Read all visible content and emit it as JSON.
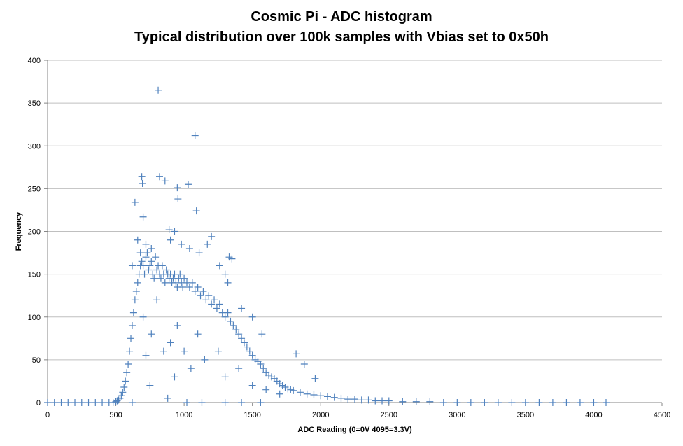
{
  "chart_data": {
    "type": "scatter",
    "title": "Cosmic Pi - ADC histogram",
    "subtitle": "Typical distribution over 100k samples with Vbias set to 0x50h",
    "xlabel": "ADC Reading (0=0V 4095=3.3V)",
    "ylabel": "Frequency",
    "xlim": [
      0,
      4500
    ],
    "ylim": [
      0,
      400
    ],
    "x_ticks": [
      0,
      500,
      1000,
      1500,
      2000,
      2500,
      3000,
      3500,
      4000,
      4500
    ],
    "y_ticks": [
      0,
      50,
      100,
      150,
      200,
      250,
      300,
      350,
      400
    ],
    "grid": "horizontal",
    "legend": "none",
    "marker": "plus",
    "color": "#4f81bd",
    "series": [
      {
        "points": [
          [
            0,
            0
          ],
          [
            50,
            0
          ],
          [
            100,
            0
          ],
          [
            150,
            0
          ],
          [
            200,
            0
          ],
          [
            250,
            0
          ],
          [
            300,
            0
          ],
          [
            350,
            0
          ],
          [
            400,
            0
          ],
          [
            450,
            0
          ],
          [
            480,
            0
          ],
          [
            500,
            1
          ],
          [
            510,
            2
          ],
          [
            520,
            3
          ],
          [
            530,
            5
          ],
          [
            540,
            8
          ],
          [
            550,
            12
          ],
          [
            560,
            18
          ],
          [
            570,
            25
          ],
          [
            580,
            35
          ],
          [
            590,
            45
          ],
          [
            600,
            60
          ],
          [
            610,
            75
          ],
          [
            620,
            90
          ],
          [
            630,
            105
          ],
          [
            640,
            120
          ],
          [
            650,
            130
          ],
          [
            660,
            140
          ],
          [
            670,
            150
          ],
          [
            680,
            160
          ],
          [
            690,
            165
          ],
          [
            700,
            160
          ],
          [
            710,
            150
          ],
          [
            720,
            170
          ],
          [
            730,
            175
          ],
          [
            740,
            155
          ],
          [
            750,
            160
          ],
          [
            760,
            165
          ],
          [
            770,
            150
          ],
          [
            780,
            145
          ],
          [
            790,
            170
          ],
          [
            800,
            155
          ],
          [
            810,
            160
          ],
          [
            820,
            150
          ],
          [
            830,
            145
          ],
          [
            840,
            160
          ],
          [
            850,
            150
          ],
          [
            860,
            140
          ],
          [
            870,
            155
          ],
          [
            880,
            150
          ],
          [
            890,
            145
          ],
          [
            900,
            150
          ],
          [
            910,
            140
          ],
          [
            920,
            145
          ],
          [
            930,
            150
          ],
          [
            940,
            140
          ],
          [
            950,
            135
          ],
          [
            960,
            145
          ],
          [
            970,
            150
          ],
          [
            980,
            140
          ],
          [
            990,
            135
          ],
          [
            1000,
            145
          ],
          [
            1020,
            140
          ],
          [
            1040,
            135
          ],
          [
            1060,
            140
          ],
          [
            1080,
            130
          ],
          [
            1100,
            135
          ],
          [
            1120,
            125
          ],
          [
            1140,
            130
          ],
          [
            1160,
            120
          ],
          [
            1180,
            125
          ],
          [
            1200,
            115
          ],
          [
            1220,
            120
          ],
          [
            1240,
            110
          ],
          [
            1260,
            115
          ],
          [
            1280,
            105
          ],
          [
            1300,
            100
          ],
          [
            1320,
            105
          ],
          [
            1340,
            95
          ],
          [
            1360,
            90
          ],
          [
            1380,
            85
          ],
          [
            1400,
            80
          ],
          [
            1420,
            75
          ],
          [
            1440,
            70
          ],
          [
            1460,
            65
          ],
          [
            1480,
            60
          ],
          [
            1500,
            55
          ],
          [
            1520,
            50
          ],
          [
            1540,
            48
          ],
          [
            1560,
            45
          ],
          [
            1580,
            40
          ],
          [
            1600,
            35
          ],
          [
            1620,
            32
          ],
          [
            1640,
            30
          ],
          [
            1660,
            28
          ],
          [
            1680,
            25
          ],
          [
            1700,
            22
          ],
          [
            1720,
            20
          ],
          [
            1740,
            18
          ],
          [
            1760,
            16
          ],
          [
            1780,
            15
          ],
          [
            1800,
            14
          ],
          [
            1850,
            12
          ],
          [
            1900,
            10
          ],
          [
            1950,
            9
          ],
          [
            2000,
            8
          ],
          [
            2050,
            7
          ],
          [
            2100,
            6
          ],
          [
            2150,
            5
          ],
          [
            2200,
            4
          ],
          [
            2250,
            4
          ],
          [
            2300,
            3
          ],
          [
            2350,
            3
          ],
          [
            2400,
            2
          ],
          [
            2450,
            2
          ],
          [
            2500,
            2
          ],
          [
            2600,
            1
          ],
          [
            2700,
            1
          ],
          [
            2800,
            1
          ],
          [
            2900,
            0
          ],
          [
            3000,
            0
          ],
          [
            3100,
            0
          ],
          [
            3200,
            0
          ],
          [
            3300,
            0
          ],
          [
            3400,
            0
          ],
          [
            3500,
            0
          ],
          [
            3600,
            0
          ],
          [
            3700,
            0
          ],
          [
            3800,
            0
          ],
          [
            3900,
            0
          ],
          [
            4000,
            0
          ],
          [
            4090,
            0
          ],
          [
            640,
            234
          ],
          [
            690,
            264
          ],
          [
            695,
            256
          ],
          [
            700,
            217
          ],
          [
            810,
            365
          ],
          [
            820,
            264
          ],
          [
            860,
            259
          ],
          [
            890,
            202
          ],
          [
            950,
            251
          ],
          [
            955,
            238
          ],
          [
            1030,
            255
          ],
          [
            1080,
            312
          ],
          [
            1090,
            224
          ],
          [
            1350,
            168
          ],
          [
            1200,
            194
          ],
          [
            1170,
            185
          ],
          [
            1300,
            150
          ],
          [
            1330,
            170
          ],
          [
            620,
            160
          ],
          [
            660,
            190
          ],
          [
            680,
            175
          ],
          [
            720,
            185
          ],
          [
            760,
            180
          ],
          [
            900,
            190
          ],
          [
            930,
            200
          ],
          [
            980,
            185
          ],
          [
            1040,
            180
          ],
          [
            1110,
            175
          ],
          [
            1260,
            160
          ],
          [
            1320,
            140
          ],
          [
            1420,
            110
          ],
          [
            1500,
            100
          ],
          [
            1570,
            80
          ],
          [
            1820,
            57
          ],
          [
            1880,
            45
          ],
          [
            1960,
            28
          ],
          [
            700,
            100
          ],
          [
            760,
            80
          ],
          [
            800,
            120
          ],
          [
            850,
            60
          ],
          [
            900,
            70
          ],
          [
            950,
            90
          ],
          [
            1000,
            60
          ],
          [
            1050,
            40
          ],
          [
            1100,
            80
          ],
          [
            1150,
            50
          ],
          [
            1250,
            60
          ],
          [
            1300,
            30
          ],
          [
            1400,
            40
          ],
          [
            1500,
            20
          ],
          [
            1600,
            15
          ],
          [
            1700,
            10
          ],
          [
            620,
            0
          ],
          [
            750,
            20
          ],
          [
            720,
            55
          ],
          [
            930,
            30
          ],
          [
            1020,
            0
          ],
          [
            1130,
            0
          ],
          [
            1300,
            0
          ],
          [
            1420,
            0
          ],
          [
            1560,
            0
          ],
          [
            880,
            5
          ]
        ]
      }
    ]
  }
}
